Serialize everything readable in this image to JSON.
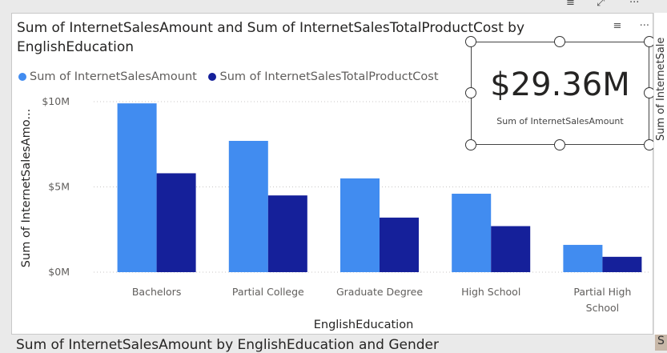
{
  "top_icons": {
    "filter": "≡",
    "expand": "⤢",
    "more": "···"
  },
  "visual": {
    "title": "Sum of InternetSalesAmount and Sum of InternetSalesTotalProductCost by EnglishEducation",
    "header_icons": {
      "filter": "≡",
      "more": "···"
    },
    "legend": [
      {
        "label": "Sum of InternetSalesAmount",
        "color": "#418CF0"
      },
      {
        "label": "Sum of InternetSalesTotalProductCost",
        "color": "#15209A"
      }
    ]
  },
  "chart_data": {
    "type": "bar",
    "categories": [
      "Bachelors",
      "Partial College",
      "Graduate Degree",
      "High School",
      "Partial High School"
    ],
    "series": [
      {
        "name": "Sum of InternetSalesAmount",
        "values": [
          9.9,
          7.7,
          5.5,
          4.6,
          1.6
        ],
        "color": "#418CF0"
      },
      {
        "name": "Sum of InternetSalesTotalProductCost",
        "values": [
          5.8,
          4.5,
          3.2,
          2.7,
          0.9
        ],
        "color": "#15209A"
      }
    ],
    "xlabel": "EnglishEducation",
    "ylabel": "Sum of InternetSalesAmo...",
    "ylim": [
      0,
      10
    ],
    "yticks": [
      {
        "value": 0,
        "label": "$0M"
      },
      {
        "value": 5,
        "label": "$5M"
      },
      {
        "value": 10,
        "label": "$10M"
      }
    ],
    "grid": true,
    "legend": "top-left"
  },
  "card": {
    "value": "$29.36M",
    "label": "Sum of InternetSalesAmount"
  },
  "right_panel": {
    "text": "Sum of InternetSale"
  },
  "bottom": {
    "title": "Sum of InternetSalesAmount by EnglishEducation and Gender",
    "corner": "S"
  }
}
